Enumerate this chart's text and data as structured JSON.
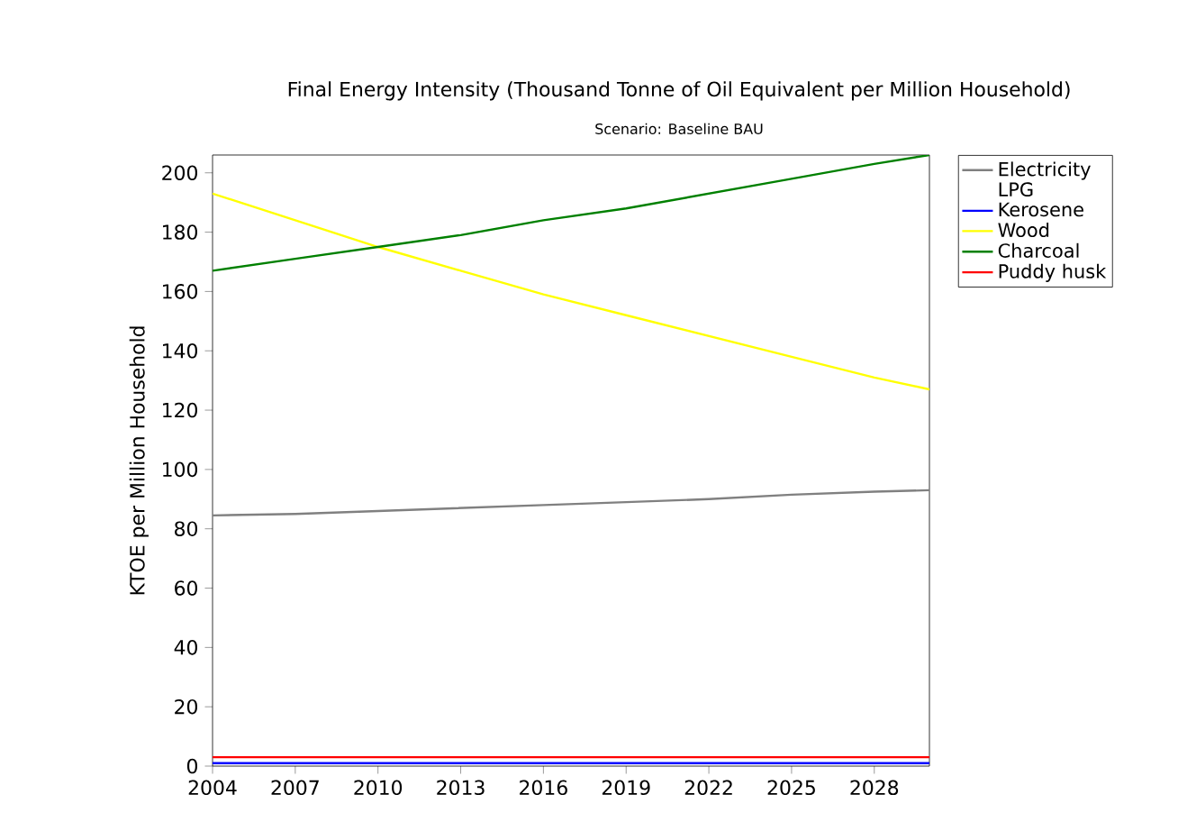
{
  "chart_data": {
    "type": "line",
    "title": "Final Energy Intensity (Thousand Tonne of Oil Equivalent per Million Household)",
    "subtitle": "Scenario: Baseline BAU",
    "ylabel": "KTOE per Million Household",
    "x": [
      2004,
      2007,
      2010,
      2013,
      2016,
      2019,
      2022,
      2025,
      2028,
      2030
    ],
    "xlim": [
      2004,
      2030
    ],
    "xticks": [
      2004,
      2007,
      2010,
      2013,
      2016,
      2019,
      2022,
      2025,
      2028
    ],
    "ylim": [
      0,
      206
    ],
    "yticks": [
      0,
      20,
      40,
      60,
      80,
      100,
      120,
      140,
      160,
      180,
      200
    ],
    "legend": "right",
    "grid": false,
    "marker": "none",
    "line_style": "solid",
    "series": [
      {
        "name": "Electricity",
        "color": "#808080",
        "values": [
          84.5,
          85,
          86,
          87,
          88,
          89,
          90,
          91.5,
          92.5,
          93
        ]
      },
      {
        "name": "LPG",
        "values": [
          null,
          null,
          null,
          null,
          null,
          null,
          null,
          null,
          null,
          null
        ]
      },
      {
        "name": "Kerosene",
        "color": "#0000ff",
        "values": [
          1,
          1,
          1,
          1,
          1,
          1,
          1,
          1,
          1,
          1
        ]
      },
      {
        "name": "Wood",
        "color": "#ffff00",
        "values": [
          193,
          184,
          175,
          167,
          159,
          152,
          145,
          138,
          131,
          127
        ]
      },
      {
        "name": "Charcoal",
        "color": "#008000",
        "values": [
          167,
          171,
          175,
          179,
          184,
          188,
          193,
          198,
          203,
          206
        ]
      },
      {
        "name": "Puddy husk",
        "color": "#ff0000",
        "values": [
          3,
          3,
          3,
          3,
          3,
          3,
          3,
          3,
          3,
          3
        ]
      }
    ]
  }
}
